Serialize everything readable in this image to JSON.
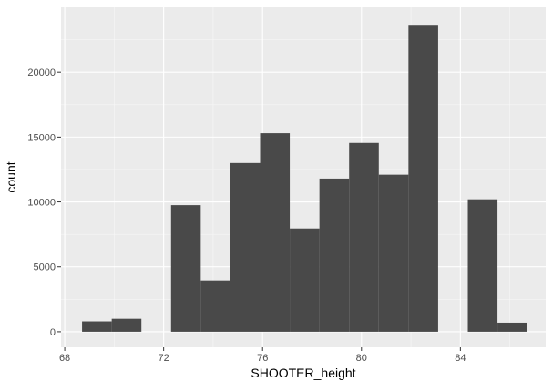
{
  "chart_data": {
    "type": "bar",
    "subtype": "histogram",
    "title": "",
    "xlabel": "SHOOTER_height",
    "ylabel": "count",
    "xlim": [
      67.85,
      87.45
    ],
    "ylim": [
      -1200,
      25000
    ],
    "x_ticks": [
      68,
      72,
      76,
      80,
      84
    ],
    "y_ticks": [
      0,
      5000,
      10000,
      15000,
      20000
    ],
    "x_tick_labels": [
      "68",
      "72",
      "76",
      "80",
      "84"
    ],
    "y_tick_labels": [
      "0",
      "5000",
      "10000",
      "15000",
      "20000"
    ],
    "bins": [
      {
        "x0": 68.7,
        "x1": 69.9,
        "count": 800
      },
      {
        "x0": 69.9,
        "x1": 71.1,
        "count": 1000
      },
      {
        "x0": 71.1,
        "x1": 72.3,
        "count": 0
      },
      {
        "x0": 72.3,
        "x1": 73.5,
        "count": 9750
      },
      {
        "x0": 73.5,
        "x1": 74.7,
        "count": 3950
      },
      {
        "x0": 74.7,
        "x1": 75.9,
        "count": 13000
      },
      {
        "x0": 75.9,
        "x1": 77.1,
        "count": 15300
      },
      {
        "x0": 77.1,
        "x1": 78.3,
        "count": 7950
      },
      {
        "x0": 78.3,
        "x1": 79.5,
        "count": 11800
      },
      {
        "x0": 79.5,
        "x1": 80.7,
        "count": 14550
      },
      {
        "x0": 80.7,
        "x1": 81.9,
        "count": 12100
      },
      {
        "x0": 81.9,
        "x1": 83.1,
        "count": 23650
      },
      {
        "x0": 83.1,
        "x1": 84.3,
        "count": 0
      },
      {
        "x0": 84.3,
        "x1": 85.5,
        "count": 10200
      },
      {
        "x0": 85.5,
        "x1": 86.7,
        "count": 700
      }
    ],
    "grid": true,
    "legend": "none",
    "colors": {
      "panel": "#ebebeb",
      "grid_major": "#ffffff",
      "grid_minor": "#f7f7f7",
      "bar": "#494949",
      "tick_label": "#4d4d4d",
      "axis_title": "#000000",
      "tick": "#333333"
    }
  }
}
